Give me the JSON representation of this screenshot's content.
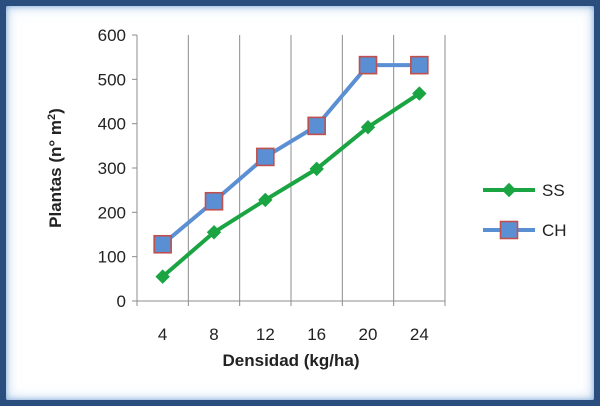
{
  "chart_data": {
    "type": "line",
    "title": "",
    "xlabel": "Densidad (kg/ha)",
    "ylabel_main": "Plantas (n° m",
    "ylabel_sup": "2",
    "ylabel_end": ")",
    "categories": [
      "4",
      "8",
      "12",
      "16",
      "20",
      "24"
    ],
    "y_ticks": [
      "0",
      "100",
      "200",
      "300",
      "400",
      "500",
      "600"
    ],
    "ylim": [
      0,
      600
    ],
    "grid": "vertical",
    "legend_position": "right",
    "series": [
      {
        "name": "SS",
        "values": [
          55,
          155,
          228,
          298,
          392,
          468
        ],
        "line_color": "#1aa442",
        "marker": "diamond",
        "marker_fill": "#1aa442"
      },
      {
        "name": "CH",
        "values": [
          128,
          225,
          325,
          395,
          532,
          532
        ],
        "line_color": "#5b8fd4",
        "marker": "square",
        "marker_fill": "#5b8fd4",
        "marker_stroke": "#c0504d"
      }
    ]
  }
}
